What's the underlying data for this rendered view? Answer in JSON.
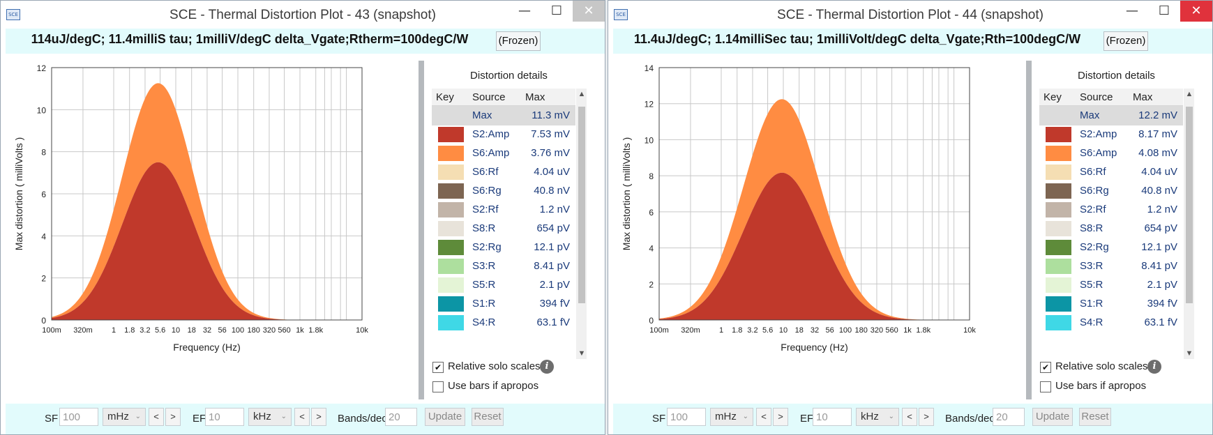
{
  "windows": [
    {
      "title": "SCE - Thermal Distortion Plot - 43  (snapshot)",
      "app_icon": "SCE",
      "close_active": false,
      "headline": "114uJ/degC; 11.4milliS tau; 1milliV/degC delta_Vgate;Rtherm=100degC/W",
      "frozen_label": "(Frozen)",
      "controls": {
        "minimize": "—",
        "maximize": "☐",
        "close": "✕"
      },
      "chart_data": {
        "type": "area",
        "ylabel": "Max distortion ( milliVolts )",
        "xlabel": "Frequency (Hz)",
        "x_scale": "log",
        "ylim": [
          0,
          12
        ],
        "yticks": [
          "0",
          "2",
          "4",
          "6",
          "8",
          "10",
          "12"
        ],
        "xlim_hz": [
          0.1,
          10000
        ],
        "xticks": [
          {
            "label": "100m",
            "hz": 0.1
          },
          {
            "label": "320m",
            "hz": 0.32
          },
          {
            "label": "1",
            "hz": 1
          },
          {
            "label": "1.8",
            "hz": 1.8
          },
          {
            "label": "3.2",
            "hz": 3.2
          },
          {
            "label": "5.6",
            "hz": 5.6
          },
          {
            "label": "10",
            "hz": 10
          },
          {
            "label": "18",
            "hz": 18
          },
          {
            "label": "32",
            "hz": 32
          },
          {
            "label": "56",
            "hz": 56
          },
          {
            "label": "100",
            "hz": 100
          },
          {
            "label": "180",
            "hz": 180
          },
          {
            "label": "320",
            "hz": 320
          },
          {
            "label": "560",
            "hz": 560
          },
          {
            "label": "1k",
            "hz": 1000
          },
          {
            "label": "1.8k",
            "hz": 1800
          },
          {
            "label": "10k",
            "hz": 10000
          }
        ],
        "grid": true,
        "series": [
          {
            "name": "S2:Amp",
            "color": "#c0392b",
            "peak_mv": 7.5,
            "peak_hz": 5.2,
            "width_decades": 0.58
          },
          {
            "name": "S6:Amp",
            "color": "#ff8c42",
            "peak_mv": 3.76,
            "peak_hz": 5.2,
            "width_decades": 0.58
          }
        ]
      },
      "details": {
        "title": "Distortion details",
        "headers": {
          "key": "Key",
          "source": "Source",
          "max": "Max"
        },
        "rows": [
          {
            "color": "",
            "source": "Max",
            "max": "11.3 mV",
            "selected": true
          },
          {
            "color": "#c0392b",
            "source": "S2:Amp",
            "max": "7.53 mV"
          },
          {
            "color": "#ff8c42",
            "source": "S6:Amp",
            "max": "3.76 mV"
          },
          {
            "color": "#f5deb3",
            "source": "S6:Rf",
            "max": "4.04 uV"
          },
          {
            "color": "#7d6552",
            "source": "S6:Rg",
            "max": "40.8 nV"
          },
          {
            "color": "#c2b4a8",
            "source": "S2:Rf",
            "max": "1.2 nV"
          },
          {
            "color": "#e8e3da",
            "source": "S8:R",
            "max": "654 pV"
          },
          {
            "color": "#5e8b3a",
            "source": "S2:Rg",
            "max": "12.1 pV"
          },
          {
            "color": "#addf9e",
            "source": "S3:R",
            "max": "8.41 pV"
          },
          {
            "color": "#e4f4d6",
            "source": "S5:R",
            "max": "2.1 pV"
          },
          {
            "color": "#0c95a5",
            "source": "S1:R",
            "max": "394 fV"
          },
          {
            "color": "#3fd8e6",
            "source": "S4:R",
            "max": "63.1 fV"
          }
        ],
        "relative_solo_scales": {
          "label": "Relative solo scales",
          "checked": true
        },
        "use_bars": {
          "label": "Use bars if apropos",
          "checked": false
        },
        "info_glyph": "i"
      },
      "footer": {
        "sf_label": "SF",
        "sf_value": "100",
        "sf_unit": "mHz",
        "ef_label": "EF",
        "ef_value": "10",
        "ef_unit": "kHz",
        "step_prev": "<",
        "step_next": ">",
        "bands_label": "Bands/dec",
        "bands_value": "20",
        "update_label": "Update",
        "reset_label": "Reset"
      }
    },
    {
      "title": "SCE - Thermal Distortion Plot - 44  (snapshot)",
      "app_icon": "SCE",
      "close_active": true,
      "headline": "11.4uJ/degC; 1.14milliSec tau; 1milliVolt/degC delta_Vgate;Rth=100degC/W",
      "frozen_label": "(Frozen)",
      "controls": {
        "minimize": "—",
        "maximize": "☐",
        "close": "✕"
      },
      "chart_data": {
        "type": "area",
        "ylabel": "Max distortion ( milliVolts )",
        "xlabel": "Frequency (Hz)",
        "x_scale": "log",
        "ylim": [
          0,
          14
        ],
        "yticks": [
          "0",
          "2",
          "4",
          "6",
          "8",
          "10",
          "12",
          "14"
        ],
        "xlim_hz": [
          0.1,
          10000
        ],
        "xticks": [
          {
            "label": "100m",
            "hz": 0.1
          },
          {
            "label": "320m",
            "hz": 0.32
          },
          {
            "label": "1",
            "hz": 1
          },
          {
            "label": "1.8",
            "hz": 1.8
          },
          {
            "label": "3.2",
            "hz": 3.2
          },
          {
            "label": "5.6",
            "hz": 5.6
          },
          {
            "label": "10",
            "hz": 10
          },
          {
            "label": "18",
            "hz": 18
          },
          {
            "label": "32",
            "hz": 32
          },
          {
            "label": "56",
            "hz": 56
          },
          {
            "label": "100",
            "hz": 100
          },
          {
            "label": "180",
            "hz": 180
          },
          {
            "label": "320",
            "hz": 320
          },
          {
            "label": "560",
            "hz": 560
          },
          {
            "label": "1k",
            "hz": 1000
          },
          {
            "label": "1.8k",
            "hz": 1800
          },
          {
            "label": "10k",
            "hz": 10000
          }
        ],
        "grid": true,
        "series": [
          {
            "name": "S2:Amp",
            "color": "#c0392b",
            "peak_mv": 8.17,
            "peak_hz": 9.5,
            "width_decades": 0.62
          },
          {
            "name": "S6:Amp",
            "color": "#ff8c42",
            "peak_mv": 4.08,
            "peak_hz": 9.5,
            "width_decades": 0.62
          }
        ]
      },
      "details": {
        "title": "Distortion details",
        "headers": {
          "key": "Key",
          "source": "Source",
          "max": "Max"
        },
        "rows": [
          {
            "color": "",
            "source": "Max",
            "max": "12.2 mV",
            "selected": true
          },
          {
            "color": "#c0392b",
            "source": "S2:Amp",
            "max": "8.17 mV"
          },
          {
            "color": "#ff8c42",
            "source": "S6:Amp",
            "max": "4.08 mV"
          },
          {
            "color": "#f5deb3",
            "source": "S6:Rf",
            "max": "4.04 uV"
          },
          {
            "color": "#7d6552",
            "source": "S6:Rg",
            "max": "40.8 nV"
          },
          {
            "color": "#c2b4a8",
            "source": "S2:Rf",
            "max": "1.2 nV"
          },
          {
            "color": "#e8e3da",
            "source": "S8:R",
            "max": "654 pV"
          },
          {
            "color": "#5e8b3a",
            "source": "S2:Rg",
            "max": "12.1 pV"
          },
          {
            "color": "#addf9e",
            "source": "S3:R",
            "max": "8.41 pV"
          },
          {
            "color": "#e4f4d6",
            "source": "S5:R",
            "max": "2.1 pV"
          },
          {
            "color": "#0c95a5",
            "source": "S1:R",
            "max": "394 fV"
          },
          {
            "color": "#3fd8e6",
            "source": "S4:R",
            "max": "63.1 fV"
          }
        ],
        "relative_solo_scales": {
          "label": "Relative solo scales",
          "checked": true
        },
        "use_bars": {
          "label": "Use bars if apropos",
          "checked": false
        },
        "info_glyph": "i"
      },
      "footer": {
        "sf_label": "SF",
        "sf_value": "100",
        "sf_unit": "mHz",
        "ef_label": "EF",
        "ef_value": "10",
        "ef_unit": "kHz",
        "step_prev": "<",
        "step_next": ">",
        "bands_label": "Bands/dec",
        "bands_value": "20",
        "update_label": "Update",
        "reset_label": "Reset"
      }
    }
  ]
}
